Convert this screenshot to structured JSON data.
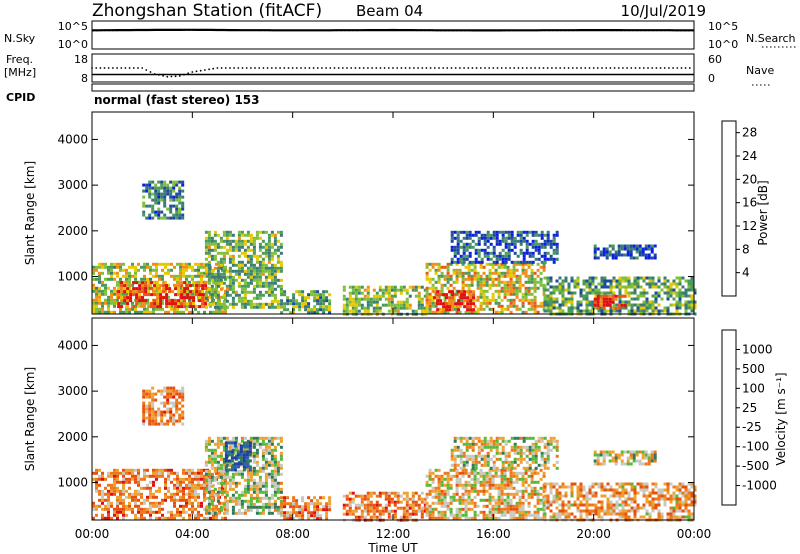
{
  "header": {
    "station_title": "Zhongshan Station (fitACF)",
    "beam": "Beam 04",
    "date": "10/Jul/2019",
    "mode": "normal (fast stereo) 153"
  },
  "colors": {
    "power_scale": [
      "#0a1fe0",
      "#1f4a9c",
      "#3a7a78",
      "#4a9a5a",
      "#7fbf3a",
      "#e8c800",
      "#f08c1a",
      "#e8581a",
      "#e01010"
    ],
    "velocity_scale": [
      "#1f3fa0",
      "#2a5fb0",
      "#2e7a5a",
      "#58b838",
      "#c8c8c0",
      "#f0a030",
      "#ec7818",
      "#e85010",
      "#e01010"
    ],
    "background": "#ffffff",
    "text": "#000000"
  },
  "chart_data": [
    {
      "type": "line",
      "panel": "noise",
      "labels": {
        "left": "N.Sky",
        "right": "N.Search",
        "left_ticks": [
          "10^5",
          "10^0"
        ],
        "right_ticks": [
          "10^5",
          "10^0"
        ]
      },
      "series": [
        {
          "name": "N.Sky",
          "style": "solid",
          "x_hours": [
            0,
            2,
            4,
            6,
            8,
            10,
            12,
            14,
            16,
            18,
            20,
            22,
            24
          ],
          "values": [
            3000,
            3500,
            3800,
            3200,
            3000,
            3100,
            3400,
            3000,
            2900,
            3100,
            3300,
            3200,
            3000
          ]
        },
        {
          "name": "N.Search",
          "style": "dotted",
          "x_hours": [
            0,
            2,
            4,
            6,
            8,
            10,
            12,
            14,
            16,
            18,
            20,
            22,
            24
          ],
          "values": [
            2500,
            2800,
            3000,
            2700,
            2600,
            2600,
            2800,
            2500,
            2500,
            2600,
            2700,
            2600,
            2500
          ]
        }
      ]
    },
    {
      "type": "scatter",
      "panel": "freq-nave",
      "labels": {
        "left": "Freq.",
        "left_unit": "[MHz]",
        "right": "Nave",
        "left_ticks": [
          18,
          8
        ],
        "right_ticks": [
          60,
          0
        ],
        "cpid": "CPID"
      },
      "ylim_freq": [
        8,
        18
      ],
      "ylim_nave": [
        0,
        60
      ],
      "series": [
        {
          "name": "Freq.",
          "x_hours": [
            0,
            24
          ],
          "values": [
            10.3,
            10.3
          ]
        },
        {
          "name": "Nave",
          "x_hours": [
            0,
            1,
            2,
            2.5,
            3,
            3.5,
            4,
            5,
            6,
            8,
            10,
            12,
            14,
            16,
            18,
            20,
            22,
            24
          ],
          "values": [
            30,
            30,
            30,
            15,
            8,
            10,
            20,
            30,
            30,
            30,
            30,
            30,
            30,
            30,
            30,
            30,
            30,
            30
          ]
        }
      ]
    },
    {
      "type": "heatmap",
      "panel": "power",
      "ylabel": "Slant Range [km]",
      "yticks": [
        1000,
        2000,
        3000,
        4000
      ],
      "ylim": [
        180,
        4600
      ],
      "xlim": [
        0,
        24
      ],
      "colorbar": {
        "label": "Power [dB]",
        "ticks": [
          4,
          8,
          12,
          16,
          20,
          24,
          28
        ],
        "range": [
          0,
          30
        ]
      },
      "regions": [
        {
          "t0": 0.0,
          "t1": 5.3,
          "r0": 200,
          "r1": 1300,
          "level": 0.55
        },
        {
          "t0": 1.0,
          "t1": 4.5,
          "r0": 350,
          "r1": 900,
          "level": 0.85
        },
        {
          "t0": 4.5,
          "t1": 7.5,
          "r0": 300,
          "r1": 2000,
          "level": 0.45
        },
        {
          "t0": 7.5,
          "t1": 9.5,
          "r0": 200,
          "r1": 700,
          "level": 0.4
        },
        {
          "t0": 10.0,
          "t1": 13.3,
          "r0": 200,
          "r1": 800,
          "level": 0.5
        },
        {
          "t0": 13.3,
          "t1": 18.0,
          "r0": 200,
          "r1": 1300,
          "level": 0.6
        },
        {
          "t0": 13.6,
          "t1": 15.2,
          "r0": 300,
          "r1": 700,
          "level": 0.9
        },
        {
          "t0": 14.3,
          "t1": 18.5,
          "r0": 1300,
          "r1": 2000,
          "level": 0.2
        },
        {
          "t0": 18.0,
          "t1": 24.0,
          "r0": 200,
          "r1": 1000,
          "level": 0.4
        },
        {
          "t0": 20.0,
          "t1": 21.3,
          "r0": 300,
          "r1": 600,
          "level": 0.9
        },
        {
          "t0": 20.0,
          "t1": 22.5,
          "r0": 1400,
          "r1": 1700,
          "level": 0.15
        },
        {
          "t0": 2.0,
          "t1": 3.6,
          "r0": 2300,
          "r1": 3100,
          "level": 0.3
        }
      ]
    },
    {
      "type": "heatmap",
      "panel": "velocity",
      "ylabel": "Slant Range [km]",
      "xlabel": "Time UT",
      "xticks": [
        "00:00",
        "04:00",
        "08:00",
        "12:00",
        "16:00",
        "20:00",
        "00:00"
      ],
      "yticks": [
        1000,
        2000,
        3000,
        4000
      ],
      "ylim": [
        180,
        4600
      ],
      "xlim": [
        0,
        24
      ],
      "colorbar": {
        "label": "Velocity [m s⁻¹]",
        "ticks": [
          "1000",
          "500",
          "100",
          "25",
          "-25",
          "-100",
          "-500",
          "-1000"
        ],
        "range": [
          -1000,
          1000
        ]
      },
      "regions": [
        {
          "t0": 0.0,
          "t1": 5.3,
          "r0": 200,
          "r1": 1300,
          "level": 0.7
        },
        {
          "t0": 4.5,
          "t1": 7.5,
          "r0": 300,
          "r1": 2000,
          "level": 0.45
        },
        {
          "t0": 5.3,
          "t1": 6.3,
          "r0": 1300,
          "r1": 1900,
          "level": 0.1
        },
        {
          "t0": 7.5,
          "t1": 9.5,
          "r0": 200,
          "r1": 700,
          "level": 0.72
        },
        {
          "t0": 10.0,
          "t1": 13.3,
          "r0": 200,
          "r1": 800,
          "level": 0.72
        },
        {
          "t0": 13.3,
          "t1": 18.0,
          "r0": 200,
          "r1": 1300,
          "level": 0.6
        },
        {
          "t0": 14.3,
          "t1": 18.5,
          "r0": 1300,
          "r1": 2000,
          "level": 0.5
        },
        {
          "t0": 18.0,
          "t1": 24.0,
          "r0": 200,
          "r1": 1000,
          "level": 0.65
        },
        {
          "t0": 20.0,
          "t1": 22.5,
          "r0": 1400,
          "r1": 1700,
          "level": 0.5
        },
        {
          "t0": 2.0,
          "t1": 3.6,
          "r0": 2300,
          "r1": 3100,
          "level": 0.7
        }
      ]
    }
  ]
}
